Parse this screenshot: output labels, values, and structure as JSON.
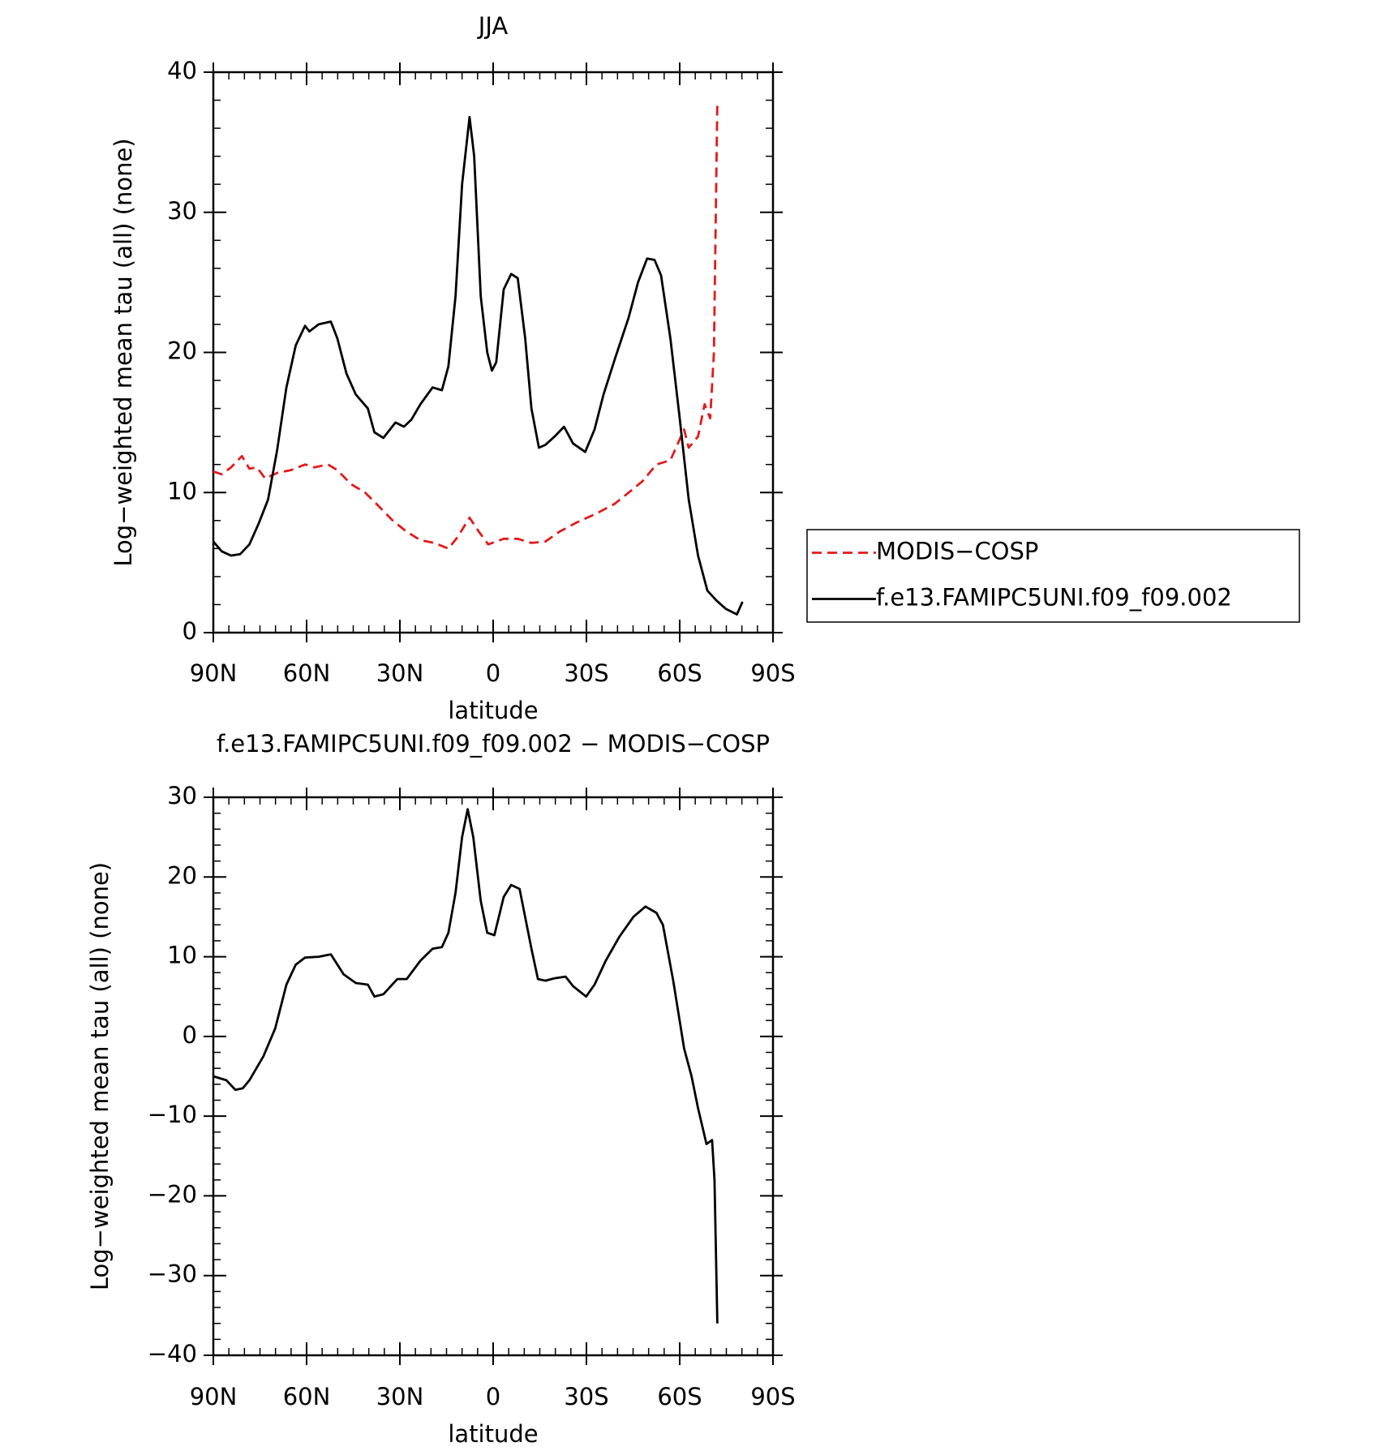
{
  "chart_data": [
    {
      "type": "line",
      "title": "JJA",
      "xlabel": "latitude",
      "ylabel": "Log−weighted mean tau (all) (none)",
      "xlim": [
        90,
        -90
      ],
      "xticks": [
        {
          "value": 90,
          "label": "90N"
        },
        {
          "value": 60,
          "label": "60N"
        },
        {
          "value": 30,
          "label": "30N"
        },
        0,
        {
          "value": -30,
          "label": "30S"
        },
        {
          "value": -60,
          "label": "60S"
        },
        {
          "value": -90,
          "label": "90S"
        }
      ],
      "ylim": [
        0,
        40
      ],
      "yticks": [
        0,
        10,
        20,
        30,
        40
      ],
      "legend": "outside-right",
      "series": [
        {
          "name": "MODIS−COSP",
          "color": "#e31a1c",
          "style": "dashed",
          "x": [
            90,
            87.3,
            84.3,
            80.8,
            78.4,
            76,
            73.3,
            69.5,
            65,
            60.5,
            57.6,
            53.1,
            50.1,
            45.7,
            41.2,
            36.7,
            32.3,
            27.8,
            23.4,
            18.9,
            14.4,
            11.5,
            7.6,
            4.6,
            1.6,
            -3.4,
            -7.9,
            -12.3,
            -16.8,
            -21.3,
            -27.2,
            -33.2,
            -39.1,
            -43.6,
            -48,
            -52.5,
            -57,
            -61.4,
            -62.9,
            -65.9,
            -68,
            -69.8,
            -71,
            -72.1
          ],
          "values": [
            11.5,
            11.3,
            11.8,
            12.6,
            11.7,
            11.8,
            11,
            11.4,
            11.6,
            12,
            11.8,
            12,
            11.6,
            10.6,
            10,
            9,
            8,
            7.2,
            6.6,
            6.4,
            6,
            6.8,
            8.2,
            7.2,
            6.3,
            6.7,
            6.7,
            6.4,
            6.5,
            7.2,
            7.9,
            8.5,
            9.2,
            10,
            10.8,
            12,
            12.3,
            14.5,
            13.2,
            14,
            16.3,
            15.3,
            20,
            38
          ]
        },
        {
          "name": "f.e13.FAMIPC5UNI.f09_f09.002",
          "color": "#000000",
          "style": "solid",
          "x": [
            90,
            87.3,
            84.3,
            81.4,
            78.4,
            75.4,
            72.4,
            69.5,
            66.5,
            63.5,
            60.5,
            59.1,
            56.1,
            52.2,
            50.1,
            47.2,
            44.2,
            40.3,
            38.2,
            35.3,
            31.4,
            28.7,
            26.3,
            23.4,
            19.5,
            16.5,
            14.4,
            12.1,
            10,
            7.6,
            6.1,
            4,
            1.9,
            0.4,
            -1,
            -3.4,
            -5.8,
            -7.9,
            -10.3,
            -12.3,
            -14.7,
            -16.8,
            -19.8,
            -22.8,
            -25.7,
            -29.6,
            -32.6,
            -35.5,
            -39.1,
            -43.6,
            -46.6,
            -49.5,
            -51.9,
            -54,
            -57,
            -59.9,
            -62.9,
            -65.9,
            -68.9,
            -71.8,
            -74.8,
            -78.4,
            -80.2
          ],
          "values": [
            6.5,
            5.8,
            5.5,
            5.6,
            6.3,
            7.8,
            9.5,
            13,
            17.5,
            20.5,
            21.9,
            21.5,
            22,
            22.2,
            21,
            18.5,
            17,
            16,
            14.3,
            13.9,
            15,
            14.7,
            15.2,
            16.3,
            17.5,
            17.3,
            19,
            24,
            32,
            36.8,
            34,
            24,
            20,
            18.7,
            19.3,
            24.5,
            25.6,
            25.3,
            21,
            16,
            13.2,
            13.4,
            14,
            14.7,
            13.5,
            12.9,
            14.5,
            17,
            19.5,
            22.5,
            25,
            26.7,
            26.6,
            25.5,
            21,
            15.5,
            9.5,
            5.5,
            3,
            2.3,
            1.7,
            1.3,
            2.2
          ]
        }
      ]
    },
    {
      "type": "line",
      "title": "f.e13.FAMIPC5UNI.f09_f09.002 − MODIS−COSP",
      "xlabel": "latitude",
      "ylabel": "Log−weighted mean tau (all) (none)",
      "xlim": [
        90,
        -90
      ],
      "xticks": [
        {
          "value": 90,
          "label": "90N"
        },
        {
          "value": 60,
          "label": "60N"
        },
        {
          "value": 30,
          "label": "30N"
        },
        0,
        {
          "value": -30,
          "label": "30S"
        },
        {
          "value": -60,
          "label": "60S"
        },
        {
          "value": -90,
          "label": "90S"
        }
      ],
      "ylim": [
        -40,
        30
      ],
      "yticks": [
        {
          "value": -40,
          "label": "−40"
        },
        {
          "value": -30,
          "label": "−30"
        },
        {
          "value": -20,
          "label": "−20"
        },
        {
          "value": -10,
          "label": "−10"
        },
        0,
        10,
        20,
        30
      ],
      "series": [
        {
          "color": "#000000",
          "style": "solid",
          "x": [
            90,
            85.8,
            82.9,
            80.5,
            78.4,
            73.9,
            70.1,
            66.5,
            63.5,
            60.5,
            56.1,
            52.2,
            48.1,
            44.2,
            40.3,
            38.2,
            35.3,
            30.8,
            27.8,
            23.4,
            19.5,
            16.5,
            14.4,
            12.1,
            10,
            8.2,
            6.4,
            4,
            1.9,
            -0.4,
            -3.4,
            -5.8,
            -8.5,
            -12.3,
            -14.4,
            -16.8,
            -19.8,
            -23.3,
            -25.7,
            -29.9,
            -32.6,
            -36.2,
            -40.6,
            -45.1,
            -49,
            -52.5,
            -54.6,
            -57.9,
            -61.4,
            -63.8,
            -65.9,
            -68.6,
            -70.4,
            -71.2,
            -72.1
          ],
          "values": [
            -5,
            -5.5,
            -6.7,
            -6.5,
            -5.5,
            -2.5,
            1,
            6.5,
            9,
            9.9,
            10,
            10.3,
            7.8,
            6.7,
            6.5,
            5,
            5.3,
            7.2,
            7.2,
            9.5,
            11,
            11.2,
            13,
            18,
            25,
            28.5,
            25,
            17,
            13,
            12.7,
            17.5,
            19,
            18.5,
            11,
            7.2,
            7,
            7.3,
            7.5,
            6.3,
            5,
            6.5,
            9.5,
            12.5,
            15,
            16.3,
            15.5,
            14,
            7,
            -1.5,
            -5,
            -9,
            -13.5,
            -13,
            -18,
            -36
          ]
        }
      ]
    }
  ]
}
